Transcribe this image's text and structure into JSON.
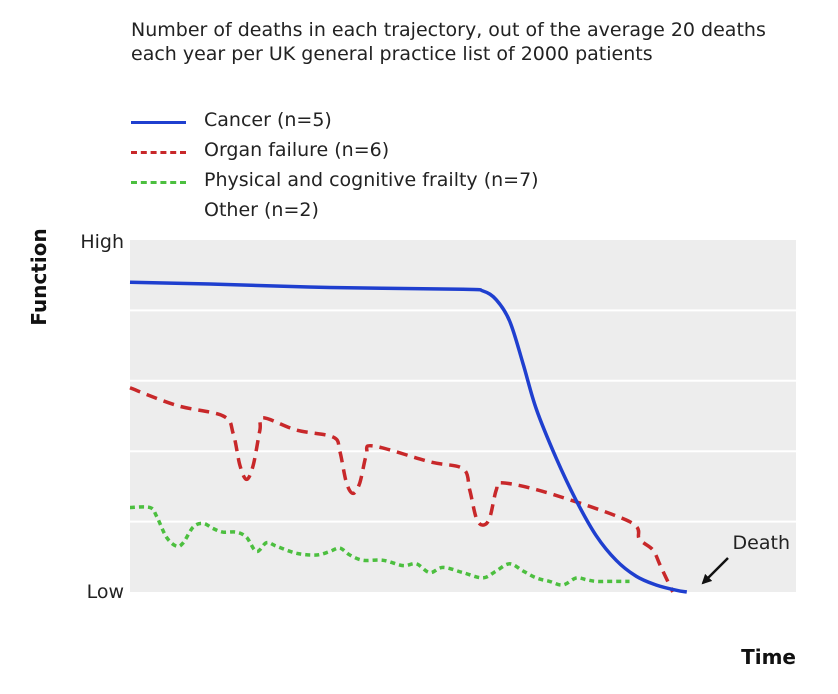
{
  "chart_data": {
    "type": "line",
    "title": "Number of deaths in each trajectory, out of the average 20 deaths each year per UK general practice list of 2000 patients",
    "xlabel": "Time",
    "ylabel": "Function",
    "y_tick_labels": {
      "high": "High",
      "low": "Low"
    },
    "xlim": [
      0,
      100
    ],
    "ylim": [
      0,
      100
    ],
    "grid": true,
    "legend": {
      "placement": "top-left",
      "entries": [
        {
          "label": "Cancer (n=5)",
          "color": "#1f3fcf",
          "style": "solid"
        },
        {
          "label": "Organ failure (n=6)",
          "color": "#c8282a",
          "style": "dashed"
        },
        {
          "label": "Physical and cognitive frailty (n=7)",
          "color": "#4cbf3f",
          "style": "dotted"
        },
        {
          "label": "Other (n=2)",
          "color": "",
          "style": "none"
        }
      ]
    },
    "annotation": {
      "text": "Death",
      "x": 83.6,
      "y": 0
    },
    "series": [
      {
        "name": "Cancer (n=5)",
        "color": "#1f3fcf",
        "style": "solid",
        "points": [
          [
            0,
            88
          ],
          [
            12,
            87.5
          ],
          [
            30,
            86.5
          ],
          [
            50,
            86
          ],
          [
            53,
            85.5
          ],
          [
            55,
            83
          ],
          [
            57,
            77
          ],
          [
            59,
            65
          ],
          [
            61,
            52
          ],
          [
            64,
            38
          ],
          [
            67,
            26
          ],
          [
            70,
            16
          ],
          [
            73,
            9
          ],
          [
            76,
            4.5
          ],
          [
            79,
            2
          ],
          [
            82,
            0.5
          ],
          [
            83.6,
            0
          ]
        ]
      },
      {
        "name": "Organ failure (n=6)",
        "color": "#c8282a",
        "style": "dashed",
        "points": [
          [
            0,
            58
          ],
          [
            7,
            53
          ],
          [
            14,
            50
          ],
          [
            15.5,
            45
          ],
          [
            16.5,
            36
          ],
          [
            17.5,
            32
          ],
          [
            18.5,
            36
          ],
          [
            19.5,
            46
          ],
          [
            20,
            49.5
          ],
          [
            25,
            46
          ],
          [
            30.5,
            44
          ],
          [
            31.5,
            40
          ],
          [
            32.5,
            31
          ],
          [
            33.5,
            28
          ],
          [
            34.5,
            31
          ],
          [
            35.5,
            39
          ],
          [
            36.5,
            41.5
          ],
          [
            45,
            37
          ],
          [
            50,
            35
          ],
          [
            51,
            29
          ],
          [
            52,
            21
          ],
          [
            53,
            19
          ],
          [
            54,
            21
          ],
          [
            55,
            29
          ],
          [
            56,
            31
          ],
          [
            63,
            28
          ],
          [
            75,
            20
          ],
          [
            76.5,
            15
          ],
          [
            78.5,
            12
          ],
          [
            79.5,
            8
          ],
          [
            80.5,
            4
          ],
          [
            81.5,
            0
          ]
        ]
      },
      {
        "name": "Physical and cognitive frailty (n=7)",
        "color": "#4cbf3f",
        "style": "dotted",
        "points": [
          [
            0,
            24
          ],
          [
            3,
            24
          ],
          [
            4,
            21.5
          ],
          [
            5.5,
            15.5
          ],
          [
            7,
            13
          ],
          [
            8,
            14
          ],
          [
            9.5,
            18.5
          ],
          [
            11,
            19.5
          ],
          [
            12.5,
            18
          ],
          [
            14,
            17
          ],
          [
            16,
            17
          ],
          [
            17.5,
            15.5
          ],
          [
            19,
            11.5
          ],
          [
            20.5,
            14
          ],
          [
            22,
            13
          ],
          [
            25,
            11
          ],
          [
            28,
            10.5
          ],
          [
            30,
            11.5
          ],
          [
            31.5,
            12.5
          ],
          [
            33,
            10.5
          ],
          [
            35,
            9
          ],
          [
            38,
            9
          ],
          [
            41,
            7.5
          ],
          [
            43,
            8
          ],
          [
            45,
            5.5
          ],
          [
            47,
            7
          ],
          [
            50,
            5.5
          ],
          [
            53,
            4
          ],
          [
            55,
            6
          ],
          [
            57,
            8
          ],
          [
            59,
            6
          ],
          [
            61,
            4
          ],
          [
            63,
            3
          ],
          [
            65,
            2
          ],
          [
            67,
            4
          ],
          [
            68.5,
            3.5
          ],
          [
            70,
            3
          ],
          [
            72,
            3
          ],
          [
            75,
            3
          ]
        ]
      }
    ]
  }
}
